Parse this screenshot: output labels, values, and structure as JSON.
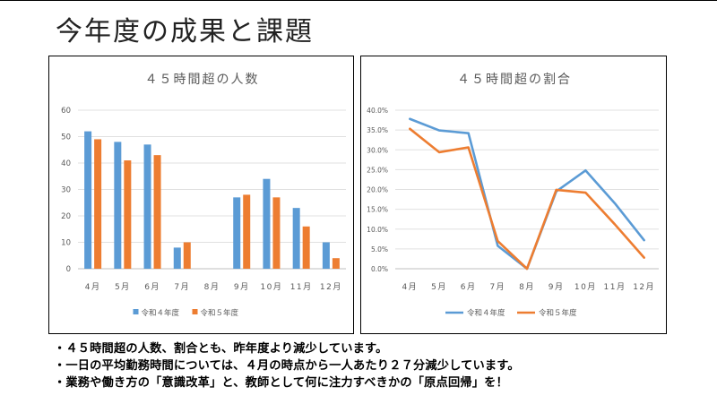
{
  "slide": {
    "title": "今年度の成果と課題"
  },
  "chart_data": [
    {
      "type": "bar",
      "title": "４５時間超の人数",
      "categories": [
        "4月",
        "5月",
        "6月",
        "7月",
        "8月",
        "9月",
        "10月",
        "11月",
        "12月"
      ],
      "series": [
        {
          "name": "令和４年度",
          "color": "#5b9bd5",
          "values": [
            52,
            48,
            47,
            8,
            null,
            27,
            34,
            23,
            10
          ]
        },
        {
          "name": "令和５年度",
          "color": "#ed7d31",
          "values": [
            49,
            41,
            43,
            10,
            null,
            28,
            27,
            16,
            4
          ]
        }
      ],
      "yticks": [
        "0",
        "10",
        "20",
        "30",
        "40",
        "50",
        "60"
      ],
      "ylim": [
        0,
        60
      ],
      "grid": true,
      "legend": "bottom"
    },
    {
      "type": "line",
      "title": "４５時間超の割合",
      "categories": [
        "4月",
        "5月",
        "6月",
        "7月",
        "8月",
        "9月",
        "10月",
        "11月",
        "12月"
      ],
      "series": [
        {
          "name": "令和４年度",
          "color": "#5b9bd5",
          "values": [
            37.8,
            34.9,
            34.2,
            5.8,
            0,
            19.5,
            24.8,
            16.5,
            7.2
          ]
        },
        {
          "name": "令和５年度",
          "color": "#ed7d31",
          "values": [
            35.3,
            29.4,
            30.6,
            7.0,
            0,
            19.9,
            19.2,
            11.2,
            2.8
          ]
        }
      ],
      "yticks": [
        "0.0%",
        "5.0%",
        "10.0%",
        "15.0%",
        "20.0%",
        "25.0%",
        "30.0%",
        "35.0%",
        "40.0%"
      ],
      "ylim": [
        0,
        40
      ],
      "grid": true,
      "legend": "bottom"
    }
  ],
  "notes": [
    "４５時間超の人数、割合とも、昨年度より減少しています。",
    "一日の平均勤務時間については、４月の時点から一人あたり２７分減少しています。",
    "業務や働き方の「意識改革」と、教師として何に注力すべきかの「原点回帰」を！"
  ]
}
